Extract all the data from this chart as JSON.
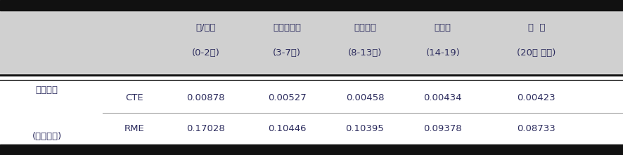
{
  "header_line1": [
    "영/유아",
    "미취학아동",
    "취학아동",
    "청소년",
    "성  인"
  ],
  "header_line2": [
    "(0-2세)",
    "(3-7세)",
    "(8-13세)",
    "(14-19)",
    "(20세 이상)"
  ],
  "row1_label1": "충위해도",
  "row1_label2": "CTE",
  "row1_values": [
    "0.00878",
    "0.00527",
    "0.00458",
    "0.00434",
    "0.00423"
  ],
  "row2_label1": "(유해지수)",
  "row2_label2": "RME",
  "row2_values": [
    "0.17028",
    "0.10446",
    "0.10395",
    "0.09378",
    "0.08733"
  ],
  "header_bg": "#d0d0d0",
  "body_bg": "#ffffff",
  "bar_color": "#111111",
  "divider_color": "#333333",
  "mid_line_color": "#aaaaaa",
  "text_color": "#2c2c5e",
  "figsize": [
    8.87,
    2.21
  ],
  "dpi": 100,
  "font_size": 9.5
}
